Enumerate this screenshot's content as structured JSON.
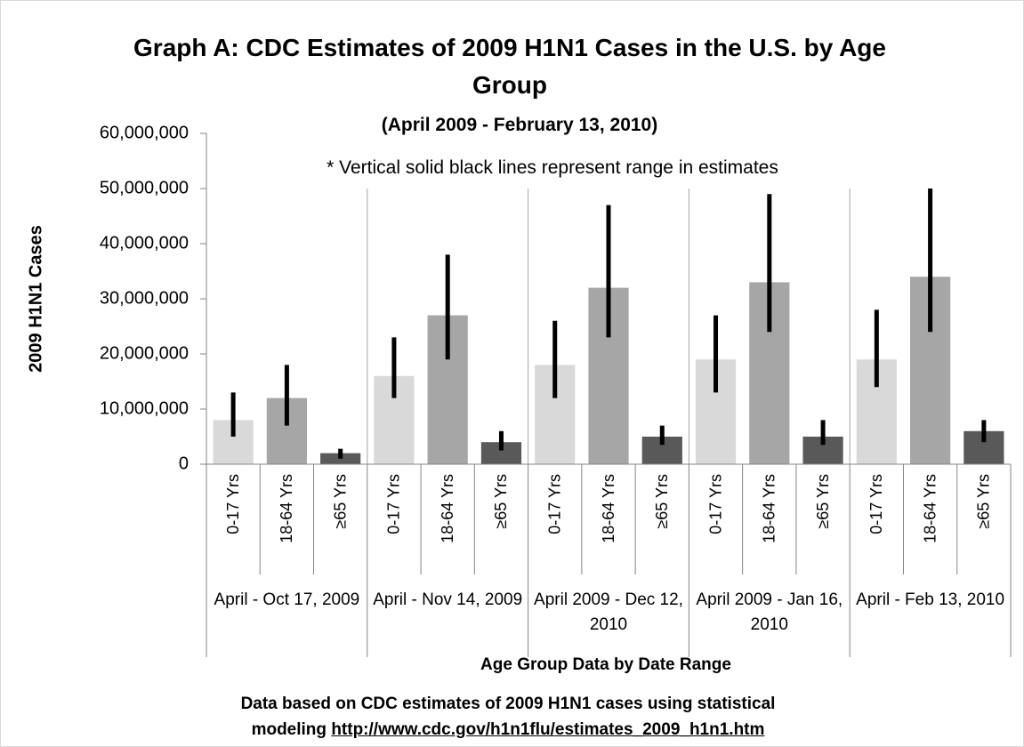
{
  "chart_data": {
    "type": "bar",
    "title": "Graph A: CDC Estimates of 2009 H1N1 Cases in the U.S. by Age Group",
    "subtitle": "(April 2009 - February 13, 2010)",
    "annotation": "* Vertical solid black lines represent range in estimates",
    "y_label": "2009 H1N1 Cases",
    "x_label": "Age Group Data by Date Range",
    "source": "Data based on CDC estimates of 2009 H1N1 cases using statistical modeling",
    "source_url": "http://www.cdc.gov/h1n1flu/estimates_2009_h1n1.htm",
    "categories": [
      "April - Oct 17, 2009",
      "April - Nov 14, 2009",
      "April 2009 - Dec 12, 2010",
      "April 2009 - Jan 16, 2010",
      "April - Feb 13, 2010"
    ],
    "series": [
      {
        "name": "0-17 Yrs",
        "color": "#d9d9d9",
        "values": [
          8000000,
          16000000,
          18000000,
          19000000,
          19000000
        ],
        "low": [
          5000000,
          12000000,
          12000000,
          13000000,
          14000000
        ],
        "high": [
          13000000,
          23000000,
          26000000,
          27000000,
          28000000
        ]
      },
      {
        "name": "18-64 Yrs",
        "color": "#a6a6a6",
        "values": [
          12000000,
          27000000,
          32000000,
          33000000,
          34000000
        ],
        "low": [
          7000000,
          19000000,
          23000000,
          24000000,
          24000000
        ],
        "high": [
          18000000,
          38000000,
          47000000,
          49000000,
          50000000
        ]
      },
      {
        "name": "≥65 Yrs",
        "color": "#595959",
        "values": [
          2000000,
          4000000,
          5000000,
          5000000,
          6000000
        ],
        "low": [
          1000000,
          2500000,
          3500000,
          3500000,
          4000000
        ],
        "high": [
          2800000,
          6000000,
          7000000,
          8000000,
          8000000
        ]
      }
    ],
    "error_color": "#000000",
    "ylim": [
      0,
      60000000
    ],
    "yticks": [
      0,
      {
        "value": 10000000,
        "label": "10,000,000"
      },
      {
        "value": 20000000,
        "label": "20,000,000"
      },
      {
        "value": 30000000,
        "label": "30,000,000"
      },
      {
        "value": 40000000,
        "label": "40,000,000"
      },
      {
        "value": 50000000,
        "label": "50,000,000"
      },
      {
        "value": 60000000,
        "label": "60,000,000"
      }
    ],
    "grid": false
  }
}
